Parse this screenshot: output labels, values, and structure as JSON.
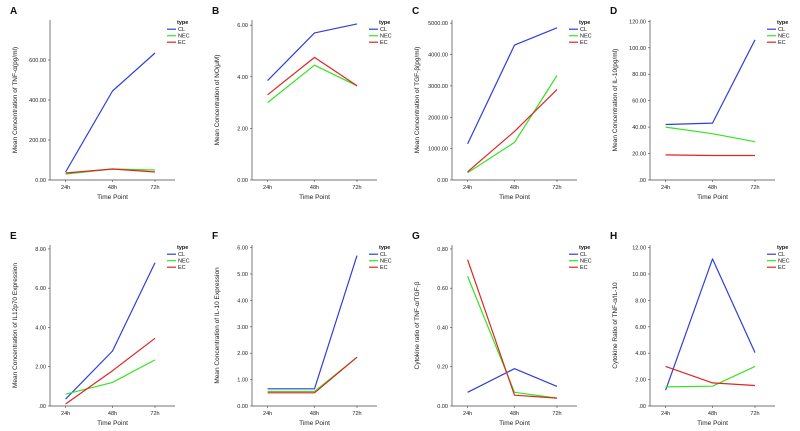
{
  "legend_title": "type",
  "series_colors": {
    "CL": "#2f3fd8",
    "NEC": "#33e51f",
    "EC": "#e02424"
  },
  "chart_data": [
    {
      "panel": "A",
      "type": "line",
      "categories": [
        "24h",
        "48h",
        "72h"
      ],
      "xlabel": "Time Point",
      "ylabel": "Mean Concentration of TNF-α(pg/ml)",
      "ylim": [
        0,
        800
      ],
      "yticks": [
        "0.00",
        "200.00",
        "400.00",
        "600.00"
      ],
      "series": [
        {
          "name": "CL",
          "values": [
            40,
            445,
            635
          ]
        },
        {
          "name": "NEC",
          "values": [
            30,
            55,
            50
          ]
        },
        {
          "name": "EC",
          "values": [
            35,
            55,
            40
          ]
        }
      ]
    },
    {
      "panel": "B",
      "type": "line",
      "categories": [
        "24h",
        "48h",
        "72h"
      ],
      "xlabel": "Time Point",
      "ylabel": "Mean Concentration of NO(μM)",
      "ylim": [
        0,
        6.2
      ],
      "yticks": [
        "0.00",
        "2.00",
        "4.00",
        "6.00"
      ],
      "series": [
        {
          "name": "CL",
          "values": [
            3.85,
            5.7,
            6.05
          ]
        },
        {
          "name": "NEC",
          "values": [
            3.0,
            4.45,
            3.65
          ]
        },
        {
          "name": "EC",
          "values": [
            3.3,
            4.75,
            3.65
          ]
        }
      ]
    },
    {
      "panel": "C",
      "type": "line",
      "categories": [
        "24h",
        "48h",
        "72h"
      ],
      "xlabel": "Time Point",
      "ylabel": "Mean Concentration of TGF-β(pg/ml)",
      "ylim": [
        0,
        5100
      ],
      "yticks": [
        "0.00",
        "1000.00",
        "2000.00",
        "3000.00",
        "4000.00",
        "5000.00"
      ],
      "series": [
        {
          "name": "CL",
          "values": [
            1150,
            4300,
            4850
          ]
        },
        {
          "name": "NEC",
          "values": [
            230,
            1200,
            3330
          ]
        },
        {
          "name": "EC",
          "values": [
            260,
            1550,
            2880
          ]
        }
      ]
    },
    {
      "panel": "D",
      "type": "line",
      "categories": [
        "24h",
        "48h",
        "72h"
      ],
      "xlabel": "Time Point",
      "ylabel": "Mean Concentration of IL-10(pg/ml)",
      "ylim": [
        0,
        121
      ],
      "yticks": [
        ".00",
        "20.00",
        "40.00",
        "60.00",
        "80.00",
        "100.00",
        "120.00"
      ],
      "series": [
        {
          "name": "CL",
          "values": [
            42,
            43,
            106
          ]
        },
        {
          "name": "NEC",
          "values": [
            40,
            35,
            29
          ]
        },
        {
          "name": "EC",
          "values": [
            19,
            18.5,
            18.5
          ]
        }
      ]
    },
    {
      "panel": "E",
      "type": "line",
      "categories": [
        "24h",
        "48h",
        "72h"
      ],
      "xlabel": "Time Point",
      "ylabel": "Mean Concentration of IL12p70 Expression",
      "ylim": [
        0,
        8.2
      ],
      "yticks": [
        ".00",
        "2.00",
        "4.00",
        "6.00",
        "8.00"
      ],
      "series": [
        {
          "name": "CL",
          "values": [
            0.35,
            2.8,
            7.3
          ]
        },
        {
          "name": "NEC",
          "values": [
            0.6,
            1.2,
            2.35
          ]
        },
        {
          "name": "EC",
          "values": [
            0.1,
            1.8,
            3.45
          ]
        }
      ]
    },
    {
      "panel": "F",
      "type": "line",
      "categories": [
        "24h",
        "48h",
        "72h"
      ],
      "xlabel": "Time Point",
      "ylabel": "Mean Concentration of IL-10 Expression",
      "ylim": [
        0,
        6.1
      ],
      "yticks": [
        "0.00",
        "1.00",
        "2.00",
        "3.00",
        "4.00",
        "5.00",
        "6.00"
      ],
      "series": [
        {
          "name": "CL",
          "values": [
            0.65,
            0.65,
            5.7
          ]
        },
        {
          "name": "NEC",
          "values": [
            0.55,
            0.55,
            1.85
          ]
        },
        {
          "name": "EC",
          "values": [
            0.5,
            0.5,
            1.85
          ]
        }
      ]
    },
    {
      "panel": "G",
      "type": "line",
      "categories": [
        "24h",
        "48h",
        "72h"
      ],
      "xlabel": "Time Point",
      "ylabel": "Cytokine ratio of TNF-α/TGF-β",
      "ylim": [
        0,
        0.82
      ],
      "yticks": [
        "0.00",
        "0.20",
        "0.40",
        "0.60",
        "0.80"
      ],
      "series": [
        {
          "name": "CL",
          "values": [
            0.07,
            0.19,
            0.1
          ]
        },
        {
          "name": "NEC",
          "values": [
            0.66,
            0.07,
            0.04
          ]
        },
        {
          "name": "EC",
          "values": [
            0.745,
            0.055,
            0.04
          ]
        }
      ]
    },
    {
      "panel": "H",
      "type": "line",
      "categories": [
        "24h",
        "48h",
        "72h"
      ],
      "xlabel": "Time Point",
      "ylabel": "Cytokine Ratio of  TNF-α/IL-10",
      "ylim": [
        0,
        12.2
      ],
      "yticks": [
        ".00",
        "2.00",
        "4.00",
        "6.00",
        "8.00",
        "10.00",
        "12.00"
      ],
      "series": [
        {
          "name": "CL",
          "values": [
            1.2,
            11.15,
            4.05
          ]
        },
        {
          "name": "NEC",
          "values": [
            1.45,
            1.5,
            3.0
          ]
        },
        {
          "name": "EC",
          "values": [
            3.0,
            1.75,
            1.55
          ]
        }
      ]
    }
  ]
}
